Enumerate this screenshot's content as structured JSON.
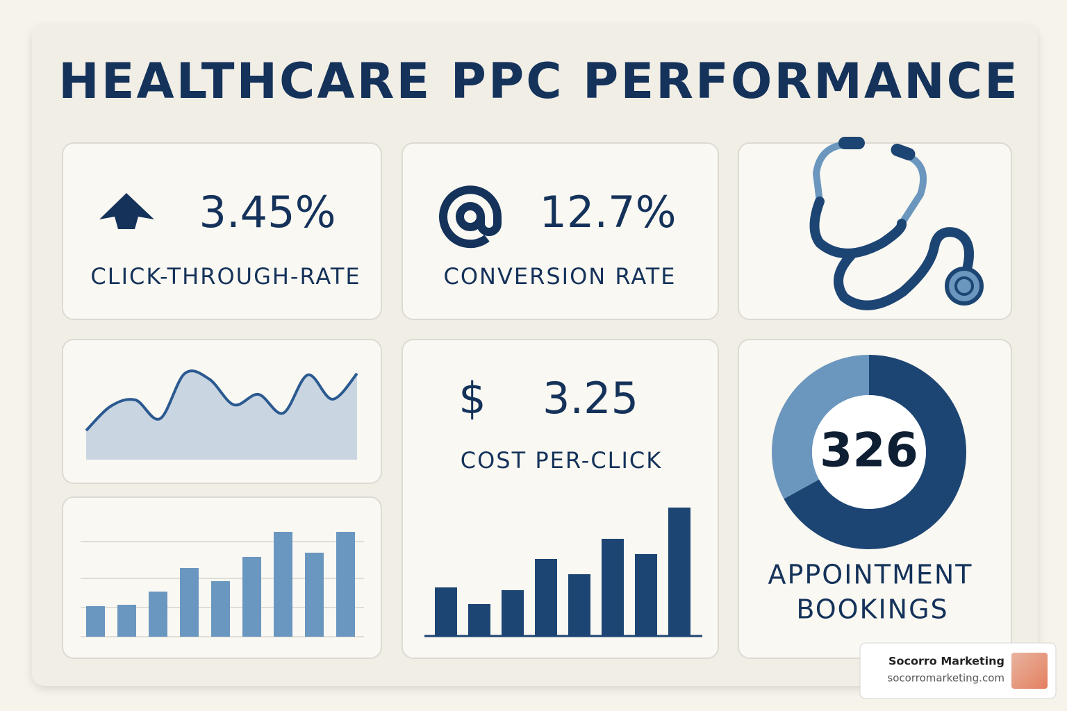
{
  "title": "HEALTHCARE PPC PERFORMANCE",
  "metrics": [
    {
      "value": "3.45%",
      "label": "CLICK-THROUGH-RATE"
    },
    {
      "value": "12.7%",
      "label": "CONVERSION RATE"
    },
    {
      "symbol": "$",
      "value": "3.25",
      "label": "COST PER-CLICK"
    },
    {
      "value": "326",
      "label": [
        "APPOINTMENT",
        "BOOKINGS"
      ]
    }
  ],
  "line_chart": {
    "values": [
      42,
      77,
      86,
      59,
      124,
      116,
      79,
      94,
      67,
      122,
      87,
      124
    ],
    "ylim": [
      0,
      140
    ],
    "color": "#2b5a91"
  },
  "bar_charts": [
    {
      "values": [
        44,
        46,
        65,
        99,
        80,
        115,
        151,
        121,
        151
      ],
      "ylim": [
        0,
        160
      ],
      "color": "#6a97bf"
    },
    {
      "values": [
        70,
        46,
        66,
        111,
        89,
        140,
        118,
        185
      ],
      "ylim": [
        0,
        200
      ],
      "color": "#1d4573"
    }
  ],
  "donut": {
    "values": [
      67,
      33
    ],
    "colors": [
      "#1d4573",
      "#6b97bf"
    ]
  },
  "watermark": {
    "name": "Socorro Marketing",
    "url": "socorromarketing.com"
  }
}
